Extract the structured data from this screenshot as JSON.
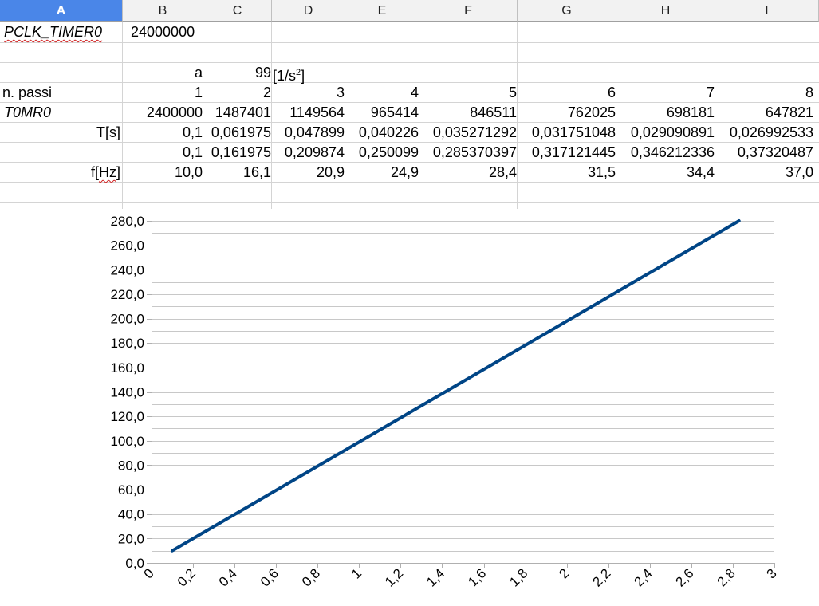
{
  "columns": [
    "A",
    "B",
    "C",
    "D",
    "E",
    "F",
    "G",
    "H",
    "I"
  ],
  "selected_column": "A",
  "rows": {
    "r1": {
      "a": "PCLK_TIMER0",
      "b": "24000000"
    },
    "r3": {
      "b": "a",
      "c": "99",
      "d_prefix": "[1/s",
      "d_sup": "2",
      "d_suffix": "]"
    },
    "r4": {
      "label": "n. passi",
      "values": [
        "1",
        "2",
        "3",
        "4",
        "5",
        "6",
        "7",
        "8"
      ]
    },
    "r5": {
      "label": "T0MR0",
      "values": [
        "2400000",
        "1487401",
        "1149564",
        "965414",
        "846511",
        "762025",
        "698181",
        "647821"
      ]
    },
    "r6": {
      "label": "T[s]",
      "values": [
        "0,1",
        "0,061975",
        "0,047899",
        "0,040226",
        "0,035271292",
        "0,031751048",
        "0,029090891",
        "0,026992533"
      ]
    },
    "r7": {
      "values": [
        "0,1",
        "0,161975",
        "0,209874",
        "0,250099",
        "0,285370397",
        "0,317121445",
        "0,346212336",
        "0,37320487"
      ]
    },
    "r8": {
      "label_prefix": "f[",
      "label_squig": "Hz",
      "label_suffix": "]",
      "values": [
        "10,0",
        "16,1",
        "20,9",
        "24,9",
        "28,4",
        "31,5",
        "34,4",
        "37,0"
      ]
    }
  },
  "chart_data": {
    "type": "line",
    "series": [
      {
        "x": [
          0.1,
          2.83
        ],
        "values": [
          10,
          280
        ],
        "color": "#004586"
      }
    ],
    "xlim": [
      0,
      3
    ],
    "ylim": [
      0,
      280
    ],
    "x_ticks": [
      "0",
      "0,2",
      "0,4",
      "0,6",
      "0,8",
      "1",
      "1,2",
      "1,4",
      "1,6",
      "1,8",
      "2",
      "2,2",
      "2,4",
      "2,6",
      "2,8",
      "3"
    ],
    "y_ticks": [
      "0,0",
      "20,0",
      "40,0",
      "60,0",
      "80,0",
      "100,0",
      "120,0",
      "140,0",
      "160,0",
      "180,0",
      "200,0",
      "220,0",
      "240,0",
      "260,0",
      "280,0"
    ],
    "grid": true,
    "legend": "none"
  }
}
